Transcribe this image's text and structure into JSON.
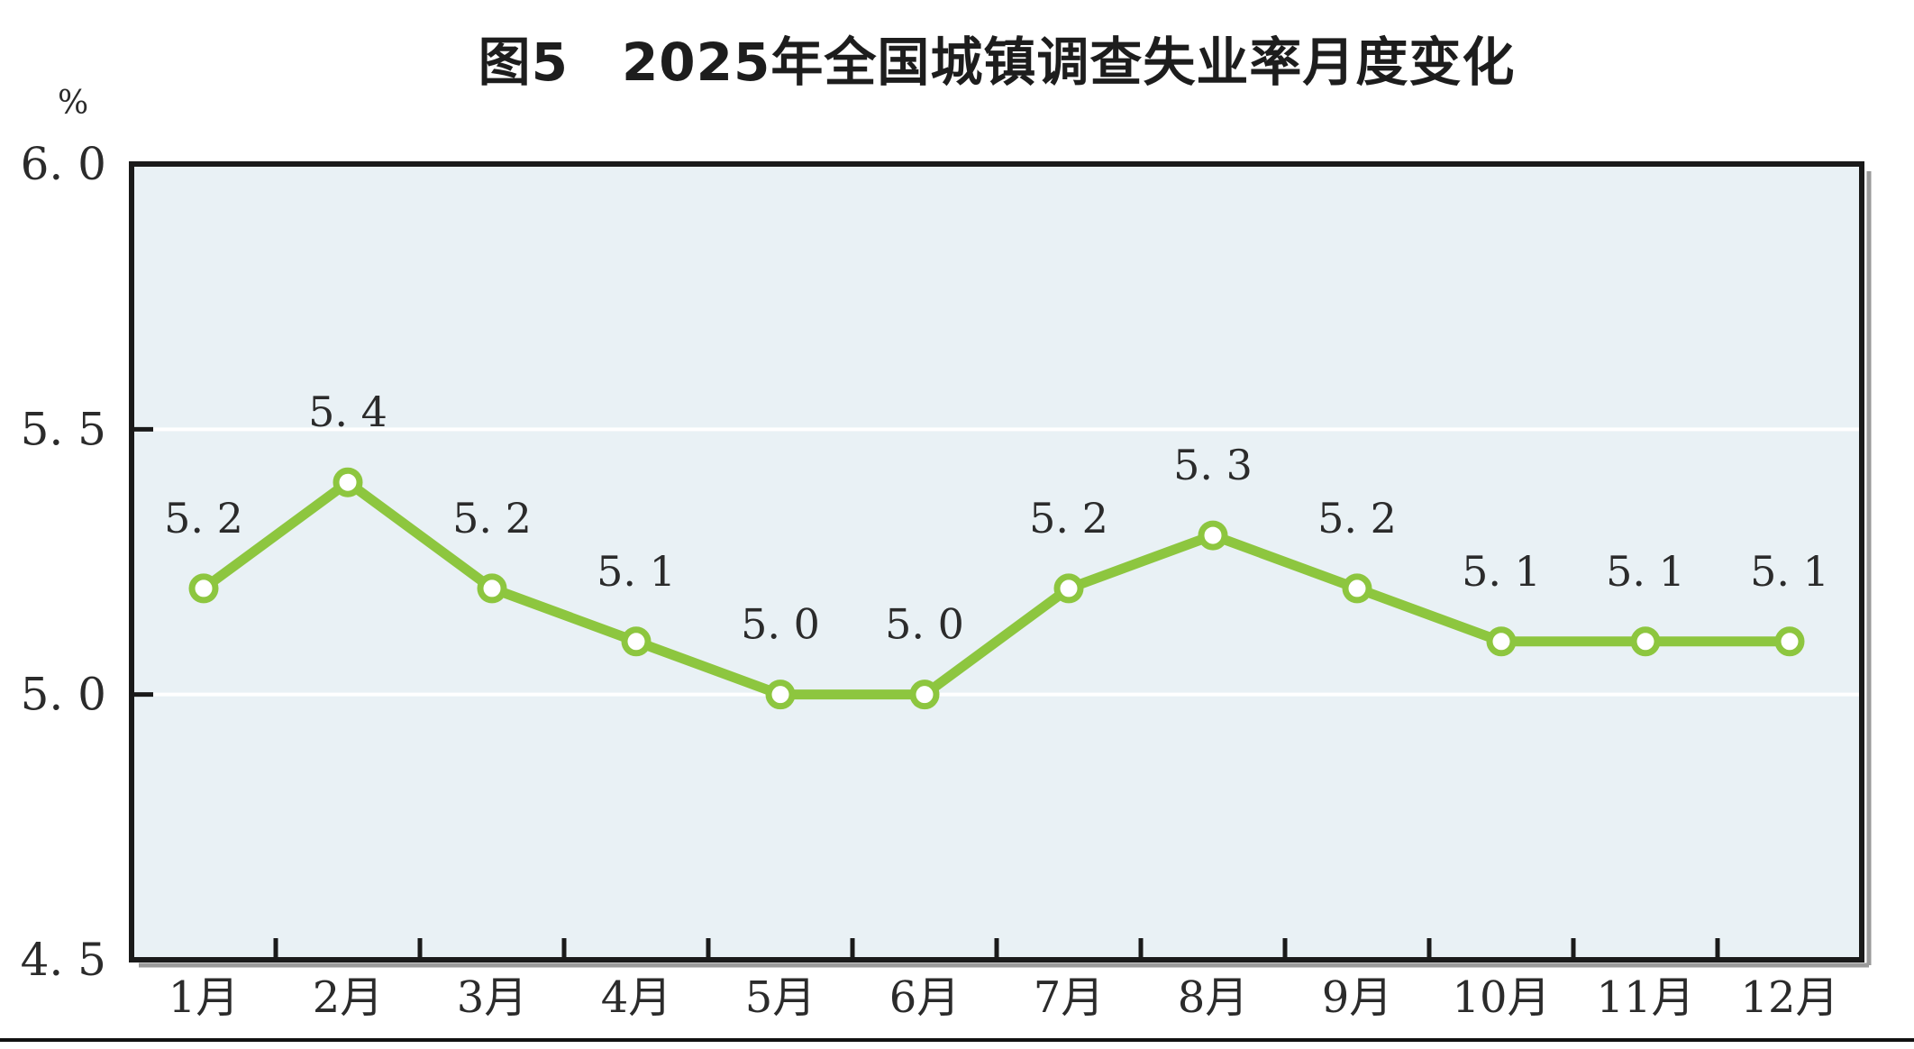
{
  "figure": {
    "bottom_rule": true
  },
  "chart_data": {
    "type": "line",
    "title": "图5　2025年全国城镇调查失业率月度变化",
    "xlabel": "",
    "ylabel": "%",
    "categories": [
      "1月",
      "2月",
      "3月",
      "4月",
      "5月",
      "6月",
      "7月",
      "8月",
      "9月",
      "10月",
      "11月",
      "12月"
    ],
    "values": [
      5.2,
      5.4,
      5.2,
      5.1,
      5.0,
      5.0,
      5.2,
      5.3,
      5.2,
      5.1,
      5.1,
      5.1
    ],
    "data_labels": [
      "5.2",
      "5.4",
      "5.2",
      "5.1",
      "5.0",
      "5.0",
      "5.2",
      "5.3",
      "5.2",
      "5.1",
      "5.1",
      "5.1"
    ],
    "ylim": [
      4.5,
      6.0
    ],
    "yticks": [
      6.0,
      5.5,
      5.0,
      4.5
    ],
    "ytick_labels": [
      "6.0",
      "5.5",
      "5.0",
      "4.5"
    ],
    "grid": "horizontal white gridlines at interior y ticks (5.5, 5.0)",
    "legend": "none",
    "colors": {
      "line": "#8dc63f",
      "marker_fill": "#ffffff",
      "plot_background": "#e9f1f5",
      "gridline": "#ffffff",
      "axis": "#1a1a1a",
      "shadow": "#9a9a9a",
      "text": "#2b2b2b"
    }
  }
}
